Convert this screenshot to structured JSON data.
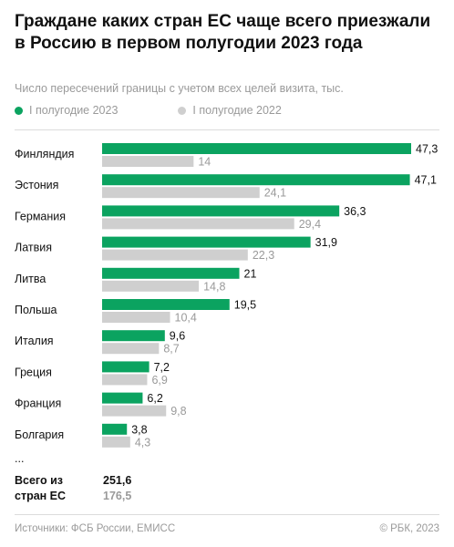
{
  "title": "Граждане каких стран ЕС чаще всего приезжали в Россию в первом полугодии 2023 года",
  "subtitle": "Число пересечений границы с учетом всех целей визита, тыс.",
  "legend": [
    {
      "label": "I полугодие 2023",
      "color": "#0ba360"
    },
    {
      "label": "I полугодие 2022",
      "color": "#cfcfcf"
    }
  ],
  "chart_data": {
    "type": "bar",
    "orientation": "horizontal",
    "categories": [
      "Финляндия",
      "Эстония",
      "Германия",
      "Латвия",
      "Литва",
      "Польша",
      "Италия",
      "Греция",
      "Франция",
      "Болгария"
    ],
    "series": [
      {
        "name": "I полугодие 2023",
        "color": "#0ba360",
        "values": [
          47.3,
          47.1,
          36.3,
          31.9,
          21,
          19.5,
          9.6,
          7.2,
          6.2,
          3.8
        ],
        "labels": [
          "47,3",
          "47,1",
          "36,3",
          "31,9",
          "21",
          "19,5",
          "9,6",
          "7,2",
          "6,2",
          "3,8"
        ]
      },
      {
        "name": "I полугодие 2022",
        "color": "#cfcfcf",
        "values": [
          14,
          24.1,
          29.4,
          22.3,
          14.8,
          10.4,
          8.7,
          6.9,
          9.8,
          4.3
        ],
        "labels": [
          "14",
          "24,1",
          "29,4",
          "22,3",
          "14,8",
          "10,4",
          "8,7",
          "6,9",
          "9,8",
          "4,3"
        ]
      }
    ],
    "truncation_marker": "...",
    "xlim": [
      0,
      47.3
    ]
  },
  "total": {
    "label": "Всего из стран ЕС",
    "value_2023": "251,6",
    "value_2022": "176,5"
  },
  "footer": {
    "source": "Источники: ФСБ России, ЕМИСС",
    "copyright": "© РБК, 2023"
  }
}
